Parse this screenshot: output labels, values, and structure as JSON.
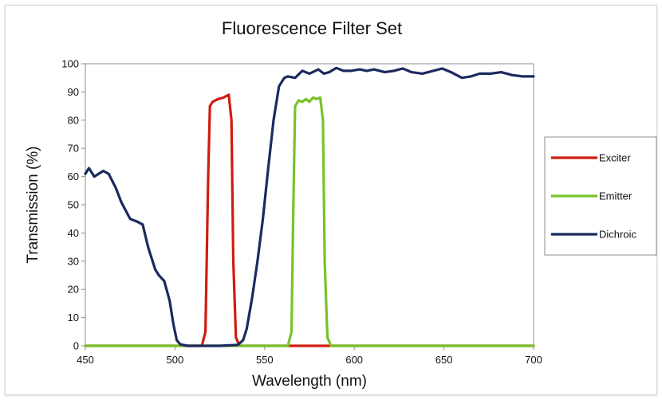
{
  "chart_data": {
    "type": "line",
    "title": "Fluorescence Filter Set",
    "xlabel": "Wavelength (nm)",
    "ylabel": "Transmission (%)",
    "xlim": [
      450,
      700
    ],
    "ylim": [
      0,
      100
    ],
    "xticks": [
      450,
      500,
      550,
      600,
      650,
      700
    ],
    "yticks": [
      0,
      10,
      20,
      30,
      40,
      50,
      60,
      70,
      80,
      90,
      100
    ],
    "grid": false,
    "legend_position": "right",
    "series": [
      {
        "name": "Exciter",
        "color": "#d01c10",
        "points": [
          [
            450,
            0
          ],
          [
            515,
            0
          ],
          [
            517,
            5
          ],
          [
            518.5,
            60
          ],
          [
            519.5,
            85
          ],
          [
            521,
            86.5
          ],
          [
            524,
            87.5
          ],
          [
            527,
            88
          ],
          [
            530,
            89
          ],
          [
            531.5,
            80
          ],
          [
            532.5,
            30
          ],
          [
            534,
            3
          ],
          [
            536,
            0
          ],
          [
            700,
            0
          ]
        ]
      },
      {
        "name": "Emitter",
        "color": "#78c22a",
        "points": [
          [
            450,
            0
          ],
          [
            563,
            0
          ],
          [
            565,
            5
          ],
          [
            566,
            50
          ],
          [
            567,
            85
          ],
          [
            569,
            87
          ],
          [
            571,
            86.5
          ],
          [
            573,
            87.5
          ],
          [
            575,
            86.5
          ],
          [
            577,
            88
          ],
          [
            579,
            87.5
          ],
          [
            581,
            88
          ],
          [
            582.5,
            80
          ],
          [
            583.5,
            30
          ],
          [
            585,
            3
          ],
          [
            587,
            0
          ],
          [
            700,
            0
          ]
        ]
      },
      {
        "name": "Dichroic",
        "color": "#1b2a5e",
        "points": [
          [
            450,
            61
          ],
          [
            452,
            63
          ],
          [
            455,
            60
          ],
          [
            460,
            62
          ],
          [
            463,
            61
          ],
          [
            467,
            56
          ],
          [
            470,
            51
          ],
          [
            475,
            45
          ],
          [
            479,
            44
          ],
          [
            482,
            43
          ],
          [
            485,
            35
          ],
          [
            489,
            27
          ],
          [
            491,
            25
          ],
          [
            494,
            23
          ],
          [
            497,
            16
          ],
          [
            499,
            8
          ],
          [
            501,
            2
          ],
          [
            503,
            0.5
          ],
          [
            507,
            0
          ],
          [
            525,
            0
          ],
          [
            535,
            0.3
          ],
          [
            538,
            2
          ],
          [
            540,
            6
          ],
          [
            543,
            17
          ],
          [
            546,
            30
          ],
          [
            549,
            45
          ],
          [
            552,
            63
          ],
          [
            555,
            80
          ],
          [
            558,
            92
          ],
          [
            561,
            95
          ],
          [
            563,
            95.5
          ],
          [
            567,
            95
          ],
          [
            571,
            97.5
          ],
          [
            575,
            96.5
          ],
          [
            580,
            98
          ],
          [
            583,
            96.5
          ],
          [
            586,
            97
          ],
          [
            590,
            98.5
          ],
          [
            594,
            97.5
          ],
          [
            598,
            97.5
          ],
          [
            603,
            98
          ],
          [
            607,
            97.5
          ],
          [
            611,
            98
          ],
          [
            617,
            97
          ],
          [
            622,
            97.5
          ],
          [
            627,
            98.3
          ],
          [
            632,
            97
          ],
          [
            638,
            96.5
          ],
          [
            644,
            97.5
          ],
          [
            649,
            98.3
          ],
          [
            654,
            97
          ],
          [
            660,
            95
          ],
          [
            665,
            95.5
          ],
          [
            670,
            96.5
          ],
          [
            676,
            96.5
          ],
          [
            682,
            97
          ],
          [
            688,
            96
          ],
          [
            694,
            95.5
          ],
          [
            700,
            95.5
          ]
        ]
      }
    ]
  }
}
